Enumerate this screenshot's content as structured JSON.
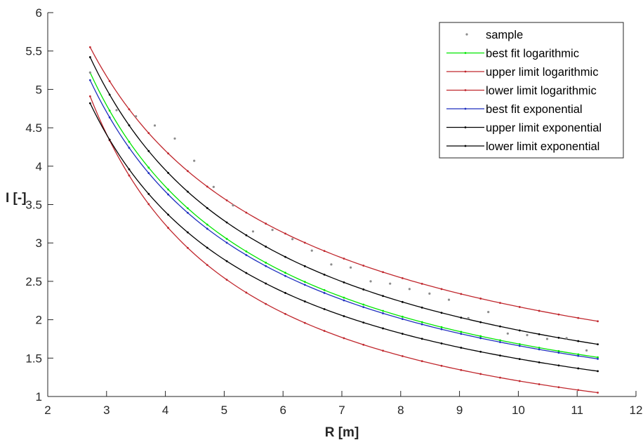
{
  "chart_data": {
    "type": "line",
    "title": "",
    "xlabel": "R [m]",
    "ylabel": "I [-]",
    "xlim": [
      2,
      12
    ],
    "ylim": [
      1,
      6
    ],
    "xticks": [
      2,
      3,
      4,
      5,
      6,
      7,
      8,
      9,
      10,
      11,
      12
    ],
    "yticks": [
      1,
      1.5,
      2,
      2.5,
      3,
      3.5,
      4,
      4.5,
      5,
      5.5,
      6
    ],
    "ytick_labels": [
      "1",
      "1.5",
      "2",
      "2.5",
      "3",
      "3.5",
      "4",
      "4.5",
      "5",
      "5.5",
      "6"
    ],
    "grid": false,
    "legend_position": "top-right",
    "sample": {
      "name": "sample",
      "color": "#8c8c8c",
      "x": [
        2.72,
        3.17,
        3.5,
        3.82,
        4.16,
        4.49,
        4.82,
        5.15,
        5.49,
        5.82,
        6.16,
        6.49,
        6.82,
        7.15,
        7.49,
        7.82,
        8.15,
        8.49,
        8.82,
        9.15,
        9.49,
        9.82,
        10.15,
        10.49,
        10.82,
        11.16
      ],
      "y": [
        5.22,
        4.73,
        4.65,
        4.53,
        4.36,
        4.07,
        3.73,
        3.49,
        3.15,
        3.17,
        3.05,
        2.9,
        2.72,
        2.68,
        2.5,
        2.47,
        2.4,
        2.34,
        2.26,
        2.02,
        2.1,
        1.82,
        1.8,
        1.75,
        1.76,
        1.6
      ]
    },
    "series": [
      {
        "name": "best fit logarithmic",
        "color": "#00e600",
        "x_range": [
          2.72,
          11.35
        ],
        "x_values_start": 2.72,
        "x_at_1": 3.15,
        "y_range": [
          5.22,
          1.51
        ]
      },
      {
        "name": "upper limit logarithmic",
        "color": "#c0272d",
        "x_range": [
          2.72,
          11.35
        ],
        "y_range": [
          5.55,
          1.98
        ]
      },
      {
        "name": "lower limit logarithmic",
        "color": "#c0272d",
        "x_range": [
          2.72,
          11.35
        ],
        "y_range": [
          4.91,
          1.05
        ]
      },
      {
        "name": "best fit exponential",
        "color": "#1f2fbf",
        "x_range": [
          2.72,
          11.35
        ],
        "y_range": [
          5.12,
          1.49
        ]
      },
      {
        "name": "upper limit exponential",
        "color": "#000000",
        "x_range": [
          2.72,
          11.35
        ],
        "y_range": [
          5.42,
          1.68
        ]
      },
      {
        "name": "lower limit exponential",
        "color": "#000000",
        "x_range": [
          2.72,
          11.35
        ],
        "y_range": [
          4.82,
          1.33
        ]
      }
    ]
  }
}
